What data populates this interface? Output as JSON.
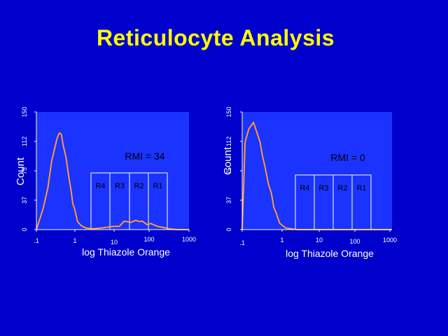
{
  "slide": {
    "title": "Reticulocyte Analysis"
  },
  "colors": {
    "background": "#0000cc",
    "plot": "#1a33ff",
    "title": "#ffff00",
    "histogram": "#ff8a1a",
    "gate": "#ffffff"
  },
  "chart_data": [
    {
      "type": "area",
      "title": "RMI = 34",
      "xlabel": "log Thiazole Orange",
      "ylabel": "Count",
      "xscale": "log",
      "xlim": [
        0.1,
        1000
      ],
      "ylim": [
        0,
        150
      ],
      "xticks": [
        ".1",
        "1",
        "10",
        "100",
        "1000"
      ],
      "yticks": [
        "0",
        "37",
        "75",
        "112",
        "150"
      ],
      "regions": [
        "R4",
        "R3",
        "R2",
        "R1"
      ],
      "series": [
        {
          "x": [
            0.1,
            0.15,
            0.2,
            0.25,
            0.3,
            0.35,
            0.4,
            0.45,
            0.5,
            0.6,
            0.7,
            0.8,
            0.9,
            1.0,
            1.2,
            1.5,
            2,
            3,
            5,
            10,
            15,
            20,
            30,
            40,
            50,
            60,
            80,
            100,
            150,
            200,
            300,
            500,
            1000
          ],
          "y": [
            0,
            25,
            55,
            85,
            105,
            115,
            125,
            120,
            110,
            90,
            70,
            50,
            35,
            25,
            12,
            5,
            2,
            1,
            2,
            4,
            6,
            9,
            11,
            10,
            12,
            9,
            8,
            6,
            4,
            3,
            1,
            0,
            0
          ]
        }
      ]
    },
    {
      "type": "area",
      "title": "RMI = 0",
      "xlabel": "log Thiazole Orange",
      "ylabel": "Count",
      "xscale": "log",
      "xlim": [
        0.1,
        1000
      ],
      "ylim": [
        0,
        150
      ],
      "xticks": [
        ".1",
        "1",
        "10",
        "100",
        "1000"
      ],
      "yticks": [
        "0",
        "37",
        "75",
        "112",
        "150"
      ],
      "regions": [
        "R4",
        "R3",
        "R2",
        "R1"
      ],
      "series": [
        {
          "x": [
            0.1,
            0.12,
            0.15,
            0.2,
            0.25,
            0.3,
            0.35,
            0.4,
            0.5,
            0.6,
            0.7,
            0.8,
            1.0,
            1.2,
            1.5,
            2,
            3,
            5,
            10,
            100,
            1000
          ],
          "y": [
            0,
            110,
            130,
            135,
            125,
            110,
            95,
            80,
            60,
            45,
            30,
            20,
            10,
            5,
            2,
            1,
            0,
            0,
            0,
            0,
            0
          ]
        }
      ]
    }
  ]
}
